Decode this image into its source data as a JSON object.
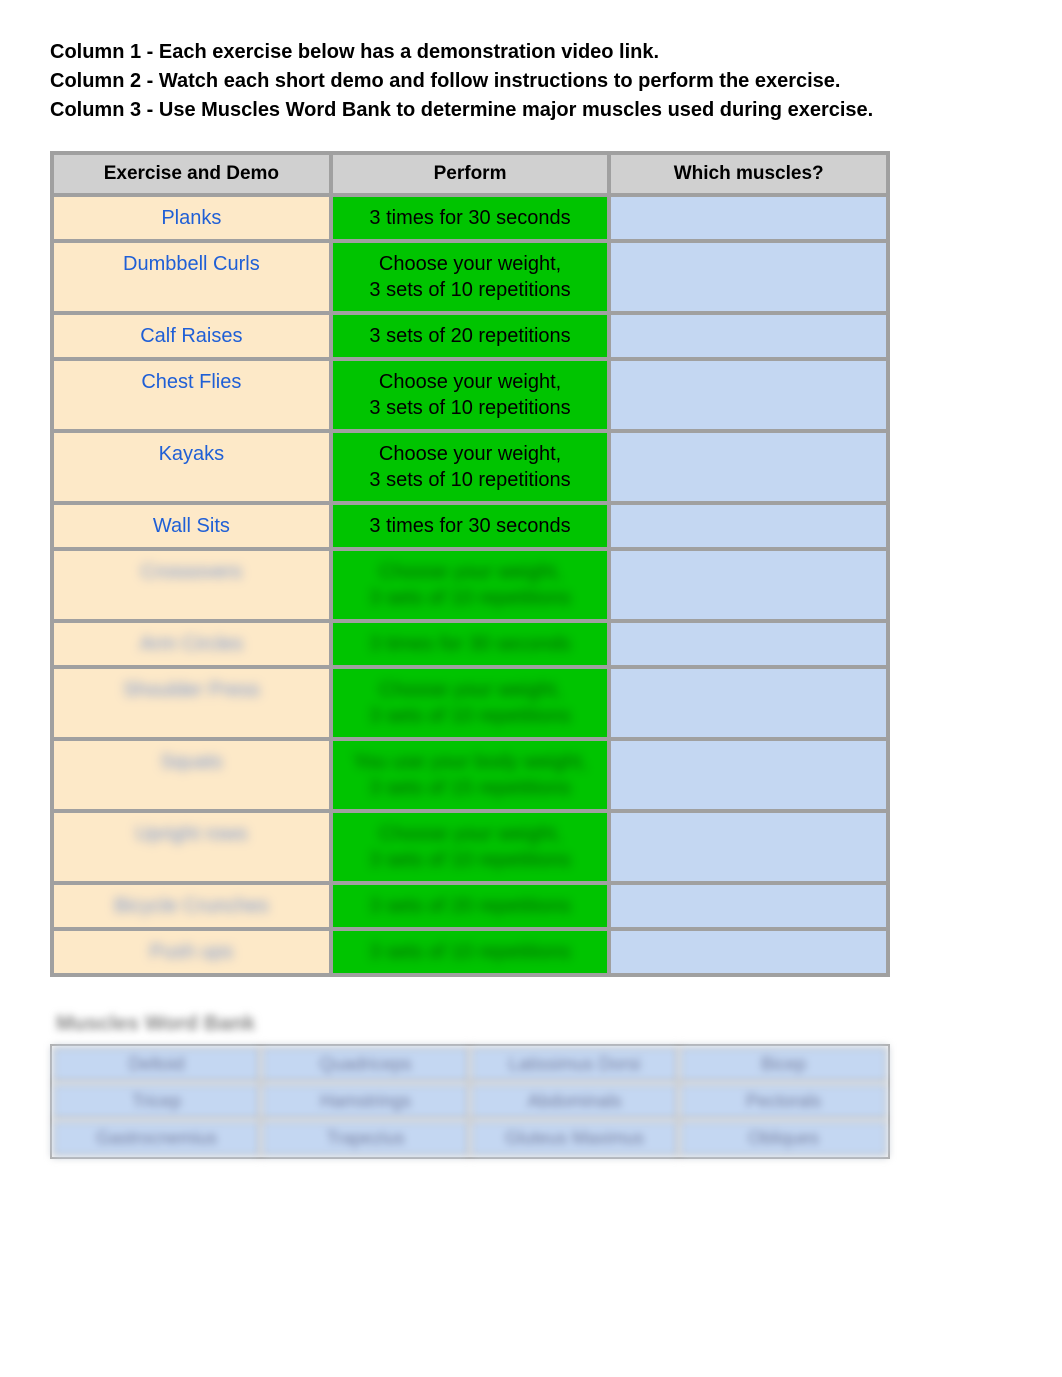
{
  "instructions": {
    "line1": "Column 1 - Each exercise below has a demonstration video link.",
    "line2": "Column 2 - Watch each short demo and follow instructions to perform the exercise.",
    "line3": "Column 3 - Use Muscles Word Bank to determine major muscles used during exercise."
  },
  "mainTable": {
    "headers": {
      "col1": "Exercise and Demo",
      "col2": "Perform",
      "col3": "Which muscles?"
    },
    "rows": [
      {
        "exercise": "Planks",
        "perform": "3 times for 30 seconds",
        "muscles": "",
        "blurred": false
      },
      {
        "exercise": "Dumbbell Curls",
        "perform": "Choose your weight,\n3 sets of 10 repetitions",
        "muscles": "",
        "blurred": false
      },
      {
        "exercise": "Calf Raises",
        "perform": "3 sets of 20 repetitions",
        "muscles": "",
        "blurred": false
      },
      {
        "exercise": "Chest Flies",
        "perform": "Choose your weight,\n3 sets of 10 repetitions",
        "muscles": "",
        "blurred": false
      },
      {
        "exercise": "Kayaks",
        "perform": "Choose your weight,\n3 sets of 10 repetitions",
        "muscles": "",
        "blurred": false
      },
      {
        "exercise": "Wall Sits",
        "perform": "3 times for 30 seconds",
        "muscles": "",
        "blurred": false
      },
      {
        "exercise": "Crossovers",
        "perform": "Choose your weight,\n3 sets of 10 repetitions",
        "muscles": "",
        "blurred": true
      },
      {
        "exercise": "Arm Circles",
        "perform": "3 times for 30 seconds",
        "muscles": "",
        "blurred": true
      },
      {
        "exercise": "Shoulder Press",
        "perform": "Choose your weight,\n3 sets of 10 repetitions",
        "muscles": "",
        "blurred": true
      },
      {
        "exercise": "Squats",
        "perform": "You use your body weight,\n3 sets of 15 repetitions",
        "muscles": "",
        "blurred": true
      },
      {
        "exercise": "Upright rows",
        "perform": "Choose your weight,\n3 sets of 10 repetitions",
        "muscles": "",
        "blurred": true
      },
      {
        "exercise": "Bicycle Crunches",
        "perform": "3 sets of 20 repetitions",
        "muscles": "",
        "blurred": true
      },
      {
        "exercise": "Push ups",
        "perform": "3 sets of 10 repetitions",
        "muscles": "",
        "blurred": true
      }
    ],
    "colors": {
      "headerBg": "#d0d0d0",
      "exerciseBg": "#fde9c8",
      "performBg": "#00c400",
      "musclesBg": "#c4d7f2",
      "border": "#a0a0a0",
      "linkColor": "#1f5fd6"
    }
  },
  "wordBank": {
    "title": "Muscles Word Bank",
    "rows": [
      [
        "Deltoid",
        "Quadriceps",
        "Latissimus Dorsi",
        "Bicep"
      ],
      [
        "Tricep",
        "Hamstrings",
        "Abdominals",
        "Pectorals"
      ],
      [
        "Gastrocnemius",
        "Trapezius",
        "Gluteus Maximus",
        "Obliques"
      ]
    ],
    "colors": {
      "cellBg": "#c4d7f2",
      "border": "#b0b0b0"
    }
  }
}
